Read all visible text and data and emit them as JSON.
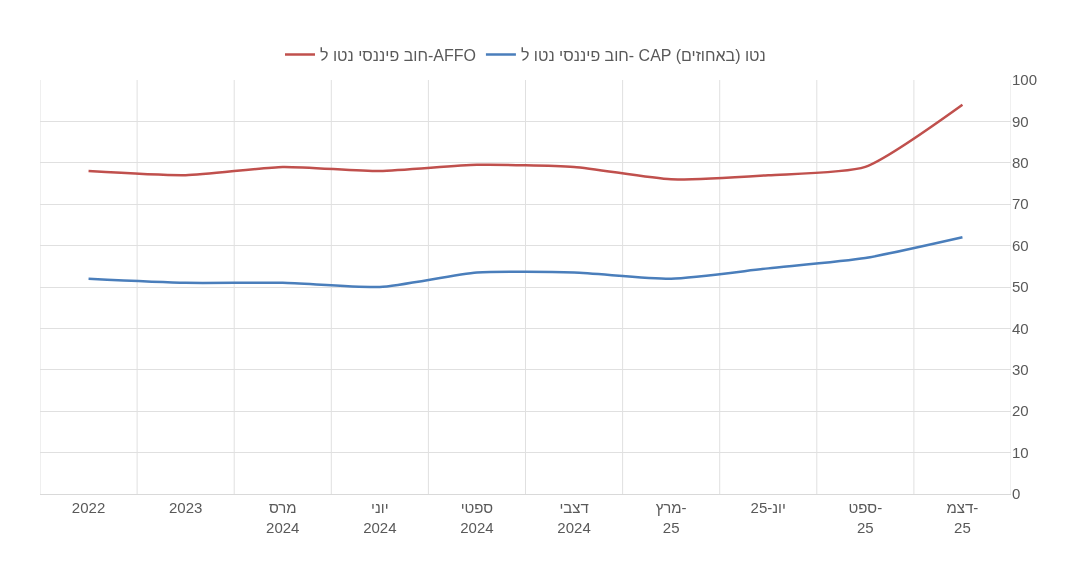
{
  "chart_data": {
    "type": "line",
    "categories": [
      "2022",
      "2023",
      "מרס\n2024",
      "יוני\n2024",
      "ספטי\n2024",
      "דצבי\n2024",
      "מרץ-\n25",
      "יונ-25",
      "ספט-\n25",
      "דצמ-\n25"
    ],
    "series": [
      {
        "name": "חוב פיננסי נטו ל- CAP נטו (באחוזים)",
        "color": "#4a7ebb",
        "values": [
          52,
          51,
          51,
          50,
          53.5,
          53.5,
          52,
          54.5,
          57,
          62
        ]
      },
      {
        "name": "חוב פיננסי נטו ל-AFFO",
        "color": "#c0504d",
        "values": [
          78,
          77,
          79,
          78,
          79.5,
          79,
          76,
          77,
          79,
          94
        ]
      }
    ],
    "ylim": [
      0,
      100
    ],
    "yticks": [
      0,
      10,
      20,
      30,
      40,
      50,
      60,
      70,
      80,
      90,
      100
    ],
    "grid": true,
    "legend": "top",
    "marker": "none",
    "line_style": "solid"
  }
}
